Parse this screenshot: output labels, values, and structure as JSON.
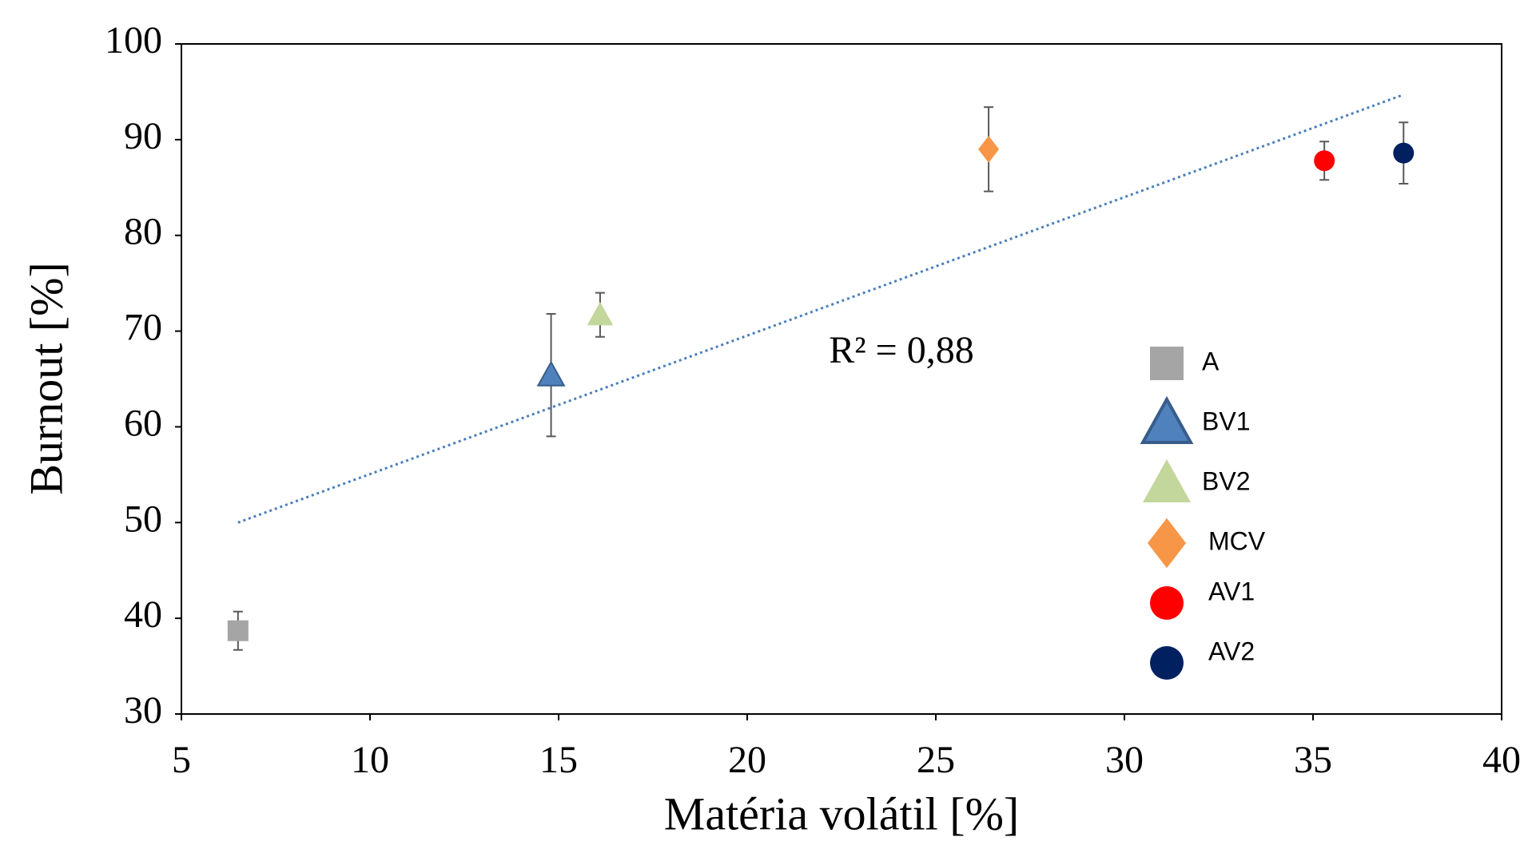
{
  "chart_data": {
    "type": "scatter",
    "xlabel": "Matéria volátil [%]",
    "ylabel": "Burnout [%]",
    "annotation": "R² = 0,88",
    "xlim": [
      5,
      40
    ],
    "xticks": [
      5,
      10,
      15,
      20,
      25,
      30,
      35,
      40
    ],
    "ylim": [
      30,
      100
    ],
    "yticks": [
      30,
      40,
      50,
      60,
      70,
      80,
      90,
      100
    ],
    "grid": false,
    "legend": "right",
    "series": [
      {
        "name": "A",
        "color": "#a5a5a5",
        "marker": "square",
        "x": [
          6.5
        ],
        "values": [
          38.7
        ],
        "errors": [
          2.0
        ]
      },
      {
        "name": "BV1",
        "color": "#4f81bd",
        "marker": "triangle",
        "x": [
          14.8
        ],
        "values": [
          65.4
        ],
        "errors": [
          6.4
        ]
      },
      {
        "name": "BV2",
        "color": "#c3d69b",
        "marker": "triangle",
        "x": [
          16.1
        ],
        "values": [
          71.7
        ],
        "errors": [
          2.3
        ]
      },
      {
        "name": "MCV",
        "color": "#f79646",
        "marker": "diamond",
        "x": [
          26.4
        ],
        "values": [
          89.0
        ],
        "errors": [
          4.4
        ]
      },
      {
        "name": "AV1",
        "color": "#ff0000",
        "marker": "circle",
        "x": [
          35.3
        ],
        "values": [
          87.8
        ],
        "errors": [
          2.0
        ]
      },
      {
        "name": "AV2",
        "color": "#002060",
        "marker": "circle",
        "x": [
          37.4
        ],
        "values": [
          88.6
        ],
        "errors": [
          3.2
        ]
      }
    ],
    "trendline": {
      "color": "#4a7ebb",
      "x": [
        6.5,
        37.4
      ],
      "y": [
        50.0,
        94.7
      ]
    }
  }
}
